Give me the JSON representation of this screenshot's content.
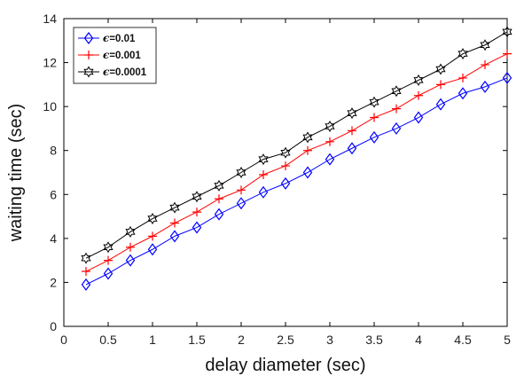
{
  "chart_data": {
    "type": "line",
    "title": "",
    "xlabel": "delay diameter (sec)",
    "ylabel": "waiting time (sec)",
    "xlim": [
      0,
      5
    ],
    "ylim": [
      0,
      14
    ],
    "xticks": [
      "0",
      "0.5",
      "1",
      "1.5",
      "2",
      "2.5",
      "3",
      "3.5",
      "4",
      "4.5",
      "5"
    ],
    "yticks": [
      "0",
      "2",
      "4",
      "6",
      "8",
      "10",
      "12",
      "14"
    ],
    "legend_position": "top-left",
    "grid": false,
    "x": [
      0.25,
      0.5,
      0.75,
      1.0,
      1.25,
      1.5,
      1.75,
      2.0,
      2.25,
      2.5,
      2.75,
      3.0,
      3.25,
      3.5,
      3.75,
      4.0,
      4.25,
      4.5,
      4.75,
      5.0
    ],
    "series": [
      {
        "name": "ε=0.01",
        "legend_symbol": "ϵ",
        "legend_value": "=0.01",
        "color": "#0000ff",
        "marker": "diamond",
        "values": [
          1.9,
          2.4,
          3.0,
          3.5,
          4.1,
          4.5,
          5.1,
          5.6,
          6.1,
          6.5,
          7.0,
          7.6,
          8.1,
          8.6,
          9.0,
          9.5,
          10.1,
          10.6,
          10.9,
          11.3
        ]
      },
      {
        "name": "ε=0.001",
        "legend_symbol": "ϵ",
        "legend_value": "=0.001",
        "color": "#ff0000",
        "marker": "plus",
        "values": [
          2.5,
          3.0,
          3.6,
          4.1,
          4.7,
          5.2,
          5.8,
          6.2,
          6.9,
          7.3,
          8.0,
          8.4,
          8.9,
          9.5,
          9.9,
          10.5,
          11.0,
          11.3,
          11.9,
          12.4
        ]
      },
      {
        "name": "ε=0.0001",
        "legend_symbol": "ϵ",
        "legend_value": "=0.0001",
        "color": "#000000",
        "marker": "star",
        "values": [
          3.1,
          3.6,
          4.3,
          4.9,
          5.4,
          5.9,
          6.4,
          7.0,
          7.6,
          7.9,
          8.6,
          9.1,
          9.7,
          10.2,
          10.7,
          11.2,
          11.7,
          12.4,
          12.8,
          13.4
        ]
      }
    ]
  }
}
